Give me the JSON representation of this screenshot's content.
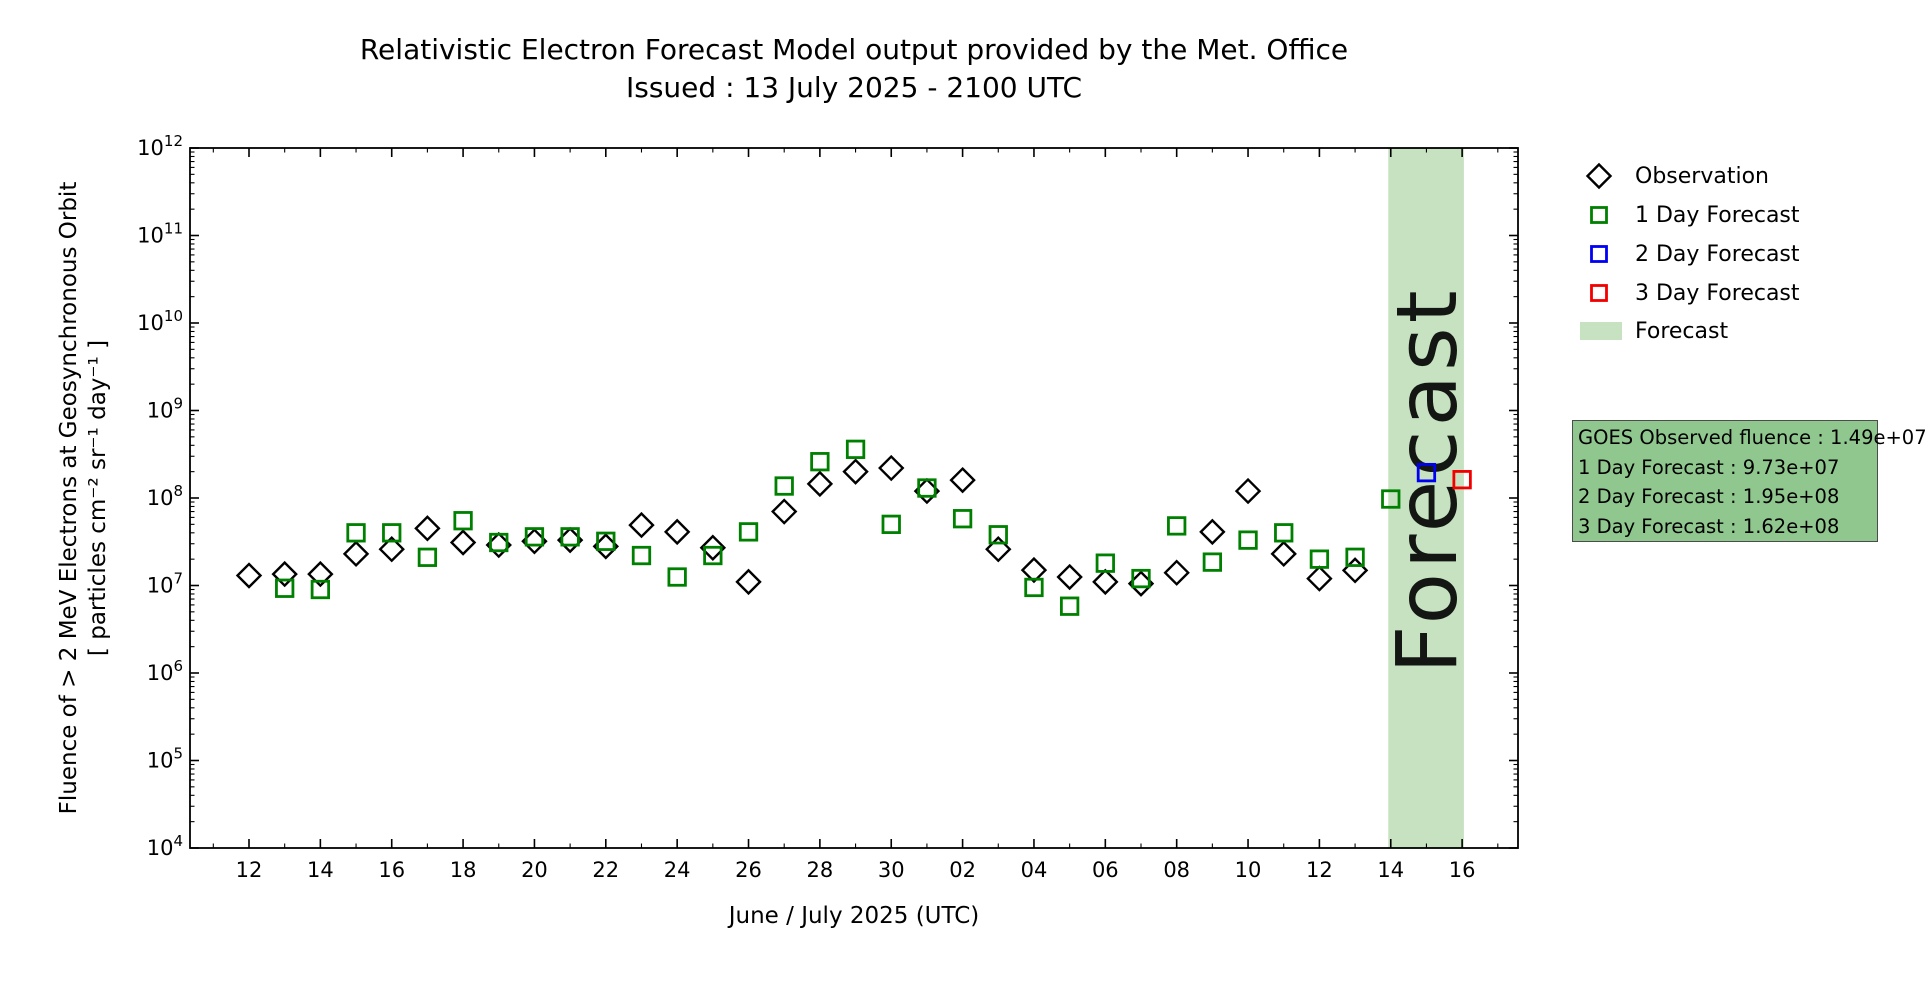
{
  "title": "Relativistic Electron Forecast Model output provided by the Met. Office",
  "subtitle": "Issued : 13 July 2025 - 2100 UTC",
  "axes": {
    "xlabel": "June / July 2025 (UTC)",
    "ylabel_line1": "Fluence of > 2 MeV Electrons at Geosynchronous Orbit",
    "ylabel_line2": "[ particles cm⁻² sr⁻¹ day⁻¹ ]"
  },
  "legend": {
    "items": [
      {
        "label": "Observation",
        "marker": "diamond",
        "color": "#000000"
      },
      {
        "label": "1 Day Forecast",
        "marker": "square",
        "color": "#008000"
      },
      {
        "label": "2 Day Forecast",
        "marker": "square",
        "color": "#0000f2"
      },
      {
        "label": "3 Day Forecast",
        "marker": "square",
        "color": "#f20000"
      },
      {
        "label": "Forecast",
        "marker": "band",
        "color": "#c6e2c1"
      }
    ]
  },
  "info_box": {
    "bg": "#90c78e",
    "lines": [
      "GOES Observed fluence : 1.49e+07",
      "1 Day Forecast : 9.73e+07",
      "2 Day Forecast : 1.95e+08",
      "3 Day Forecast : 1.62e+08"
    ]
  },
  "chart_data": {
    "type": "scatter",
    "title": "Relativistic Electron Forecast Model output provided by the Met. Office",
    "subtitle": "Issued : 13 July 2025 - 2100 UTC",
    "xlabel": "June / July 2025 (UTC)",
    "ylabel": "Fluence of > 2 MeV Electrons at Geosynchronous Orbit [ particles cm-2 sr-1 day-1 ]",
    "grid": false,
    "legend_position": "outside-right",
    "x_axis": {
      "unit": "days, 0 = June 12 2025",
      "tick_days": [
        0,
        2,
        4,
        6,
        8,
        10,
        12,
        14,
        16,
        18,
        20,
        22,
        24,
        26,
        28,
        30,
        32,
        34
      ],
      "tick_labels": [
        "12",
        "14",
        "16",
        "18",
        "20",
        "22",
        "24",
        "26",
        "28",
        "30",
        "02",
        "04",
        "06",
        "08",
        "10",
        "12",
        "14",
        "16"
      ],
      "minor_tick_every_day": true,
      "range_days": [
        -1.65,
        35.55
      ]
    },
    "y_axis": {
      "scale": "log",
      "min": 10000.0,
      "max": 1000000000000.0,
      "tick_exponents": [
        4,
        5,
        6,
        7,
        8,
        9,
        10,
        11,
        12
      ],
      "minor_log_ticks": true
    },
    "forecast_band": {
      "label": "Forecast",
      "start_day": 31.93,
      "end_day": 34.05,
      "color": "#c6e2c1",
      "text_color": "#82927f"
    },
    "series": [
      {
        "name": "Observation",
        "marker": "diamond",
        "color": "#000000",
        "points": [
          [
            0,
            13000000.0
          ],
          [
            1,
            13500000.0
          ],
          [
            2,
            13500000.0
          ],
          [
            3,
            23000000.0
          ],
          [
            4,
            26000000.0
          ],
          [
            5,
            45000000.0
          ],
          [
            6,
            31000000.0
          ],
          [
            7,
            29000000.0
          ],
          [
            8,
            32000000.0
          ],
          [
            9,
            33000000.0
          ],
          [
            10,
            28000000.0
          ],
          [
            11,
            49000000.0
          ],
          [
            12,
            41000000.0
          ],
          [
            13,
            27000000.0
          ],
          [
            14,
            11000000.0
          ],
          [
            15,
            70000000.0
          ],
          [
            16,
            145000000.0
          ],
          [
            17,
            200000000.0
          ],
          [
            18,
            220000000.0
          ],
          [
            19,
            120000000.0
          ],
          [
            20,
            160000000.0
          ],
          [
            21,
            26000000.0
          ],
          [
            22,
            15000000.0
          ],
          [
            23,
            12500000.0
          ],
          [
            24,
            11000000.0
          ],
          [
            25,
            10500000.0
          ],
          [
            26,
            14000000.0
          ],
          [
            27,
            41000000.0
          ],
          [
            28,
            120000000.0
          ],
          [
            29,
            23000000.0
          ],
          [
            30,
            12000000.0
          ],
          [
            31,
            14900000.0
          ]
        ]
      },
      {
        "name": "1 Day Forecast",
        "marker": "square",
        "color": "#008000",
        "points": [
          [
            1,
            9300000.0
          ],
          [
            2,
            9000000.0
          ],
          [
            3,
            40000000.0
          ],
          [
            4,
            40000000.0
          ],
          [
            5,
            21000000.0
          ],
          [
            6,
            55000000.0
          ],
          [
            7,
            31000000.0
          ],
          [
            8,
            36000000.0
          ],
          [
            9,
            36000000.0
          ],
          [
            10,
            32000000.0
          ],
          [
            11,
            22000000.0
          ],
          [
            12,
            12500000.0
          ],
          [
            13,
            22000000.0
          ],
          [
            14,
            41000000.0
          ],
          [
            15,
            137000000.0
          ],
          [
            16,
            260000000.0
          ],
          [
            17,
            360000000.0
          ],
          [
            18,
            50000000.0
          ],
          [
            19,
            130000000.0
          ],
          [
            20,
            58000000.0
          ],
          [
            21,
            38000000.0
          ],
          [
            22,
            9500000.0
          ],
          [
            23,
            5800000.0
          ],
          [
            24,
            18000000.0
          ],
          [
            25,
            12000000.0
          ],
          [
            26,
            48000000.0
          ],
          [
            27,
            18500000.0
          ],
          [
            28,
            33000000.0
          ],
          [
            29,
            40000000.0
          ],
          [
            30,
            20000000.0
          ],
          [
            31,
            21000000.0
          ],
          [
            32,
            97300000.0
          ]
        ]
      },
      {
        "name": "2 Day Forecast",
        "marker": "square",
        "color": "#0000f2",
        "points": [
          [
            33,
            195000000.0
          ]
        ]
      },
      {
        "name": "3 Day Forecast",
        "marker": "square",
        "color": "#f20000",
        "points": [
          [
            34,
            162000000.0
          ]
        ]
      }
    ]
  }
}
